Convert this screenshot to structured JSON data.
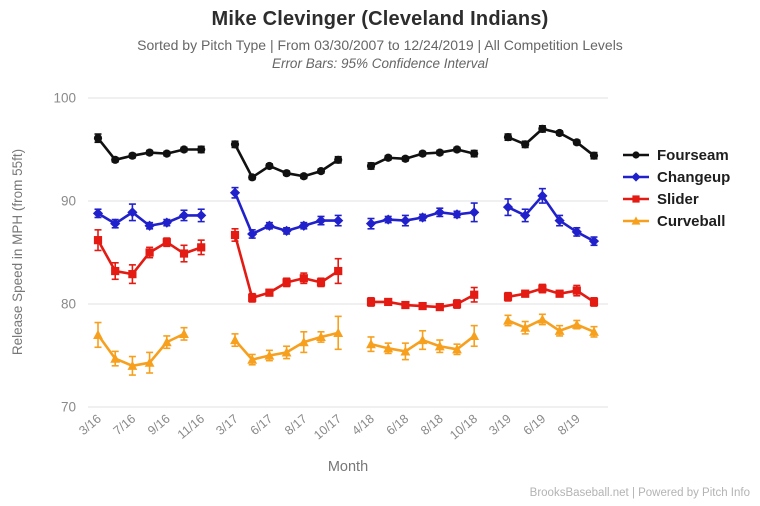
{
  "header": {
    "title": "Mike Clevinger (Cleveland Indians)",
    "subtitle": "Sorted by Pitch Type | From 03/30/2007 to 12/24/2019 | All Competition Levels",
    "note": "Error Bars: 95% Confidence Interval"
  },
  "footer": {
    "credit": "BrooksBaseball.net | Powered by Pitch Info"
  },
  "chart_data": {
    "type": "line",
    "title": "Mike Clevinger (Cleveland Indians)",
    "xlabel": "Month",
    "ylabel": "Release Speed in MPH (from 55ft)",
    "ylim": [
      70,
      100
    ],
    "yticks": [
      100,
      90,
      80,
      70
    ],
    "grid": true,
    "legend_position": "right",
    "x_tick_labels": [
      "3/16",
      "7/16",
      "9/16",
      "11/16",
      "3/17",
      "6/17",
      "8/17",
      "10/17",
      "4/18",
      "6/18",
      "8/18",
      "10/18",
      "3/19",
      "6/19",
      "8/19"
    ],
    "season_groups": [
      "2016",
      "2017",
      "2018",
      "2019"
    ],
    "error_bars": "95% Confidence Interval",
    "colors": {
      "fourseam": "#111111",
      "changeup": "#2121cc",
      "slider": "#e31b12",
      "curveball": "#f7a01e"
    },
    "series": [
      {
        "name": "Fourseam",
        "color": "#111111",
        "marker": "circle",
        "groups": [
          [
            96.1,
            94.0,
            94.4,
            94.7,
            94.6,
            95.0,
            95.0
          ],
          [
            95.5,
            92.3,
            93.4,
            92.7,
            92.4,
            92.9,
            94.0
          ],
          [
            93.4,
            94.2,
            94.1,
            94.6,
            94.7,
            95.0,
            94.6
          ],
          [
            96.2,
            95.5,
            97.0,
            96.6,
            95.7,
            94.4
          ]
        ],
        "errors": [
          [
            0.4,
            0.2,
            0.2,
            0.2,
            0.2,
            0.2,
            0.3
          ],
          [
            0.3,
            0.2,
            0.2,
            0.2,
            0.2,
            0.2,
            0.3
          ],
          [
            0.3,
            0.2,
            0.2,
            0.2,
            0.2,
            0.2,
            0.3
          ],
          [
            0.3,
            0.3,
            0.3,
            0.2,
            0.2,
            0.3
          ]
        ]
      },
      {
        "name": "Changeup",
        "color": "#2121cc",
        "marker": "diamond",
        "groups": [
          [
            88.8,
            87.8,
            88.9,
            87.6,
            87.9,
            88.6,
            88.6
          ],
          [
            90.8,
            86.8,
            87.6,
            87.1,
            87.6,
            88.1,
            88.1
          ],
          [
            87.8,
            88.2,
            88.1,
            88.4,
            88.9,
            88.7,
            88.9
          ],
          [
            89.4,
            88.6,
            90.5,
            88.1,
            87.0,
            86.1
          ]
        ],
        "errors": [
          [
            0.4,
            0.4,
            0.8,
            0.3,
            0.3,
            0.5,
            0.6
          ],
          [
            0.5,
            0.4,
            0.3,
            0.3,
            0.3,
            0.4,
            0.5
          ],
          [
            0.5,
            0.3,
            0.5,
            0.3,
            0.4,
            0.3,
            0.9
          ],
          [
            0.8,
            0.6,
            0.7,
            0.5,
            0.4,
            0.4
          ]
        ]
      },
      {
        "name": "Slider",
        "color": "#e31b12",
        "marker": "square",
        "groups": [
          [
            86.2,
            83.2,
            82.9,
            85.0,
            86.0,
            84.9,
            85.5
          ],
          [
            86.7,
            80.6,
            81.1,
            82.1,
            82.5,
            82.1,
            83.2
          ],
          [
            80.2,
            80.2,
            79.9,
            79.8,
            79.7,
            80.0,
            80.9
          ],
          [
            80.7,
            81.0,
            81.5,
            81.0,
            81.3,
            80.2
          ]
        ],
        "errors": [
          [
            1.0,
            0.8,
            0.9,
            0.5,
            0.4,
            0.8,
            0.7
          ],
          [
            0.6,
            0.4,
            0.3,
            0.4,
            0.5,
            0.4,
            1.2
          ],
          [
            0.4,
            0.3,
            0.3,
            0.3,
            0.3,
            0.4,
            0.7
          ],
          [
            0.4,
            0.3,
            0.4,
            0.3,
            0.5,
            0.4
          ]
        ]
      },
      {
        "name": "Curveball",
        "color": "#f7a01e",
        "marker": "triangle",
        "groups": [
          [
            77.0,
            74.7,
            74.0,
            74.3,
            76.3,
            77.1
          ],
          [
            76.5,
            74.6,
            75.0,
            75.3,
            76.3,
            76.8,
            77.2
          ],
          [
            76.1,
            75.7,
            75.4,
            76.5,
            75.9,
            75.6,
            76.9
          ],
          [
            78.4,
            77.7,
            78.5,
            77.4,
            78.0,
            77.3
          ]
        ],
        "errors": [
          [
            1.2,
            0.7,
            0.9,
            1.0,
            0.6,
            0.6
          ],
          [
            0.6,
            0.5,
            0.5,
            0.6,
            1.0,
            0.5,
            1.6
          ],
          [
            0.7,
            0.5,
            0.8,
            0.9,
            0.6,
            0.5,
            1.0
          ],
          [
            0.5,
            0.6,
            0.5,
            0.5,
            0.4,
            0.5
          ]
        ]
      }
    ]
  }
}
